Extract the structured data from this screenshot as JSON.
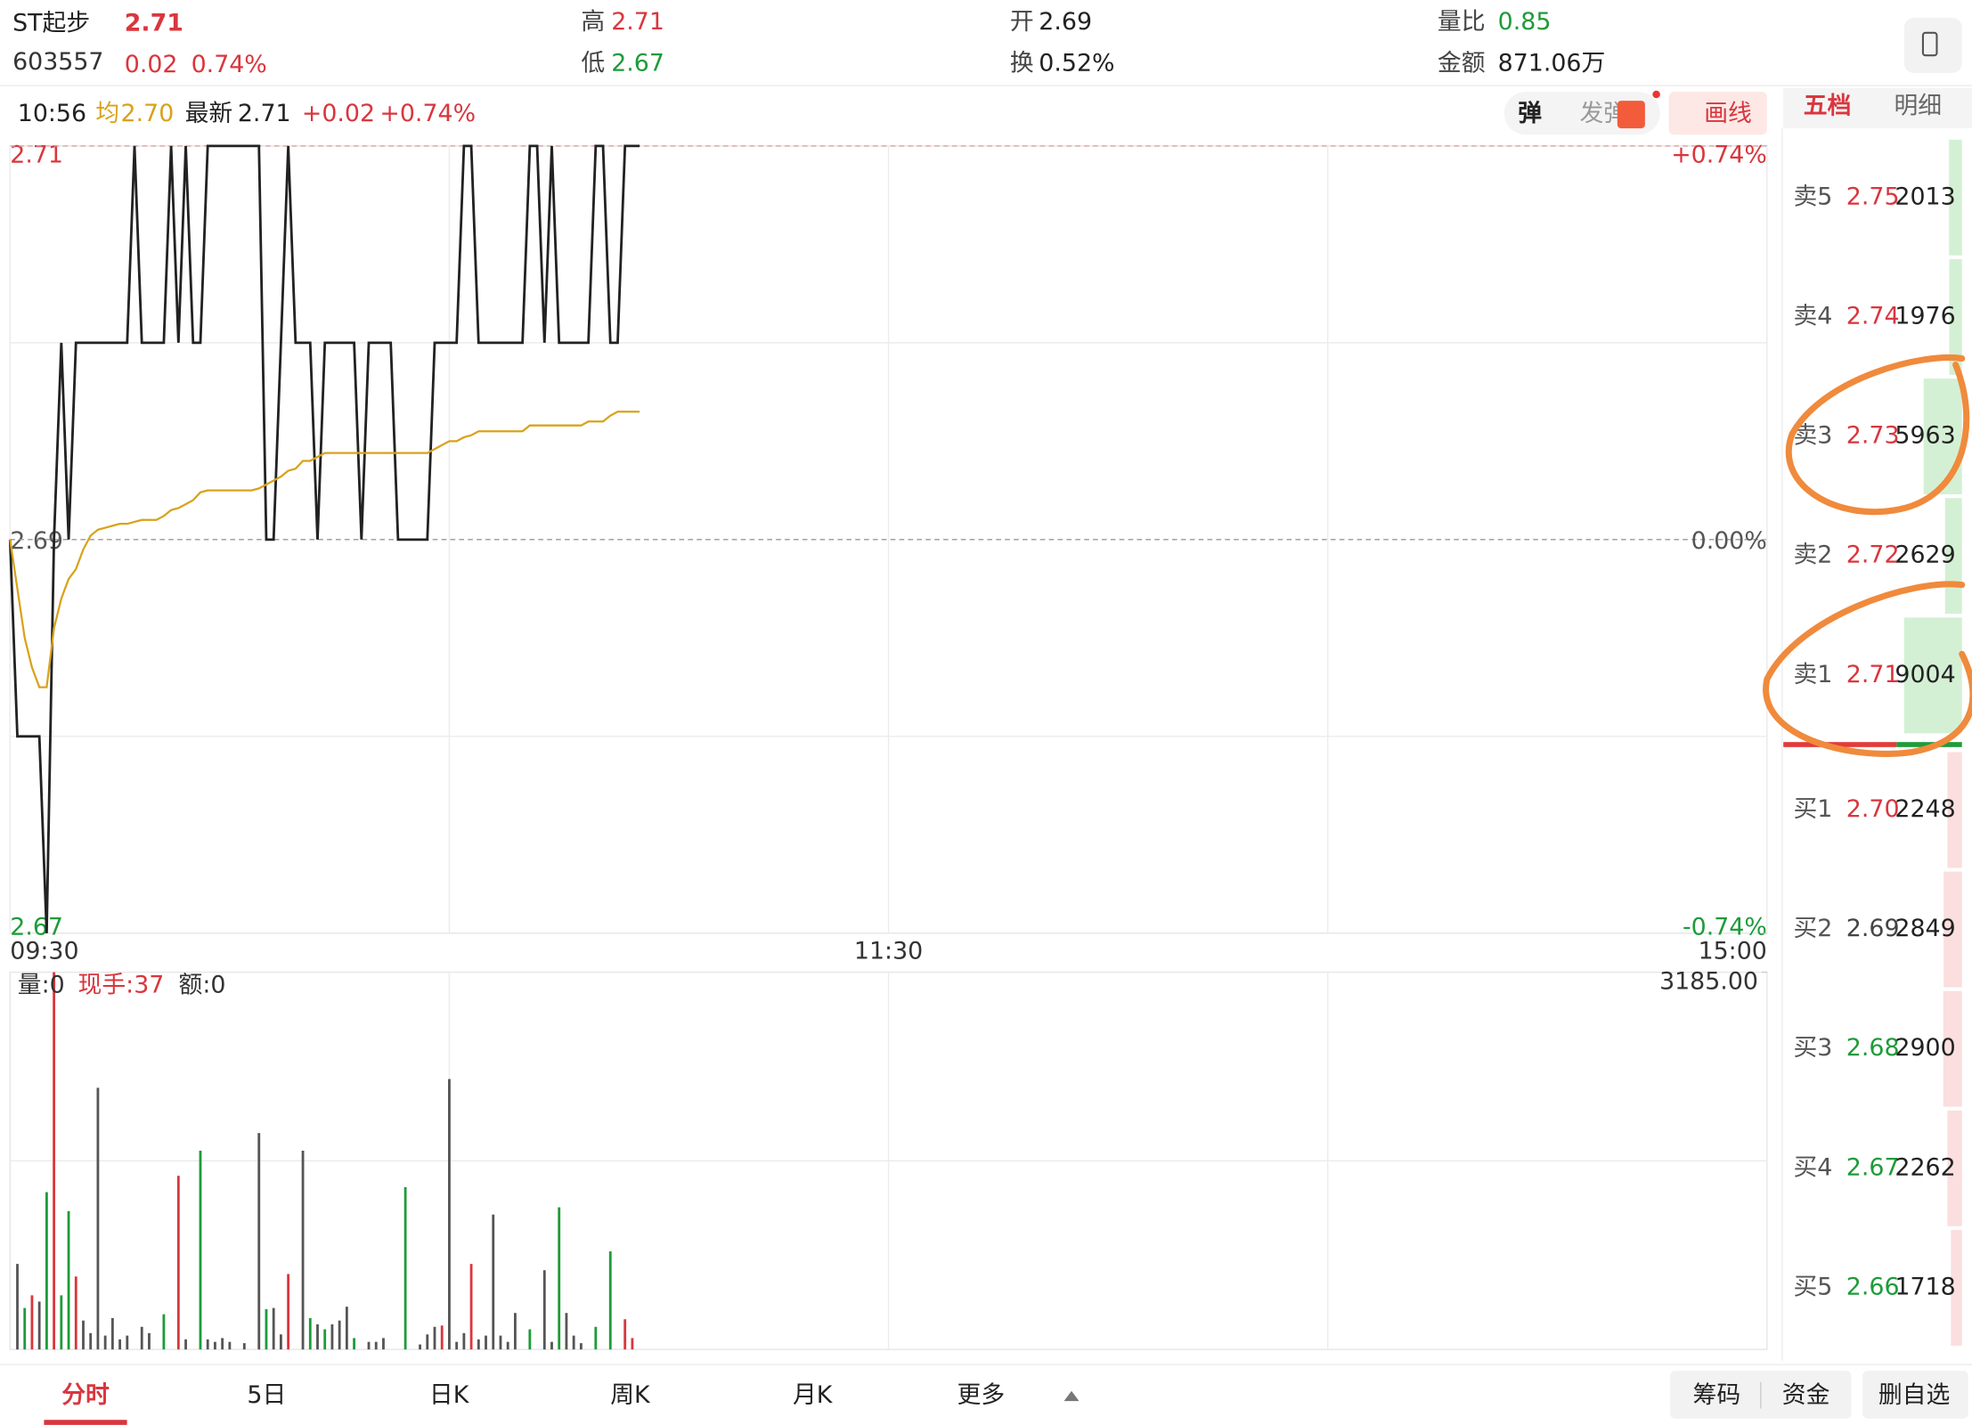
{
  "header": {
    "name": "ST起步",
    "price": "2.71",
    "code": "603557",
    "change": "0.02",
    "change_pct": "0.74%",
    "high_label": "高",
    "high": "2.71",
    "low_label": "低",
    "low": "2.67",
    "open_label": "开",
    "open": "2.69",
    "turnover_label": "换",
    "turnover": "0.52%",
    "volume_ratio_label": "量比",
    "volume_ratio": "0.85",
    "amount_label": "金额",
    "amount": "871.06万"
  },
  "info_bar": {
    "time": "10:56",
    "avg": "2.70",
    "latest": "2.71",
    "change": "+0.02",
    "change_pct": "+0.74%"
  },
  "toolbar": {
    "danmaku": "弹",
    "send_danmaku": "发弹",
    "draw": "画线"
  },
  "chart_data": [
    {
      "type": "line",
      "x": [
        0,
        1,
        2,
        3,
        4,
        5,
        6,
        7,
        8,
        9,
        10,
        11,
        12,
        13,
        14,
        15,
        16,
        17,
        18,
        19,
        20,
        21,
        22,
        23,
        24,
        25,
        26,
        27,
        28,
        29,
        30,
        31,
        32,
        33,
        34,
        35,
        36,
        37,
        38,
        39,
        40,
        41,
        42,
        43,
        44,
        45,
        46,
        47,
        48,
        49,
        50,
        51,
        52,
        53,
        54,
        55,
        56,
        57,
        58,
        59,
        60,
        61,
        62,
        63,
        64,
        65,
        66,
        67,
        68,
        69,
        70,
        71,
        72,
        73,
        74,
        75,
        76,
        77,
        78,
        79,
        80,
        81,
        82,
        83,
        84,
        85,
        86
      ],
      "xlim": [
        0,
        240
      ],
      "xticks": [
        {
          "value": 0,
          "label": "09:30"
        },
        {
          "value": 120,
          "label": "11:30"
        },
        {
          "value": 240,
          "label": "15:00"
        }
      ],
      "xgrid": [
        60,
        180
      ],
      "ylim": [
        2.67,
        2.71
      ],
      "yticks": [
        2.67,
        2.69,
        2.71
      ],
      "ygrid": [
        2.68,
        2.7
      ],
      "y2lim": [
        -0.74,
        0.74
      ],
      "y2ticks": [
        {
          "value": -0.74,
          "label": "-0.74%"
        },
        {
          "value": 0,
          "label": "0.00%"
        },
        {
          "value": 0.74,
          "label": "+0.74%"
        }
      ],
      "series": [
        {
          "name": "最新",
          "color": "#222222",
          "values": [
            2.69,
            2.68,
            2.68,
            2.68,
            2.68,
            2.67,
            2.69,
            2.7,
            2.69,
            2.7,
            2.7,
            2.7,
            2.7,
            2.7,
            2.7,
            2.7,
            2.7,
            2.71,
            2.7,
            2.7,
            2.7,
            2.7,
            2.71,
            2.7,
            2.71,
            2.7,
            2.7,
            2.71,
            2.71,
            2.71,
            2.71,
            2.71,
            2.71,
            2.71,
            2.71,
            2.69,
            2.69,
            2.7,
            2.71,
            2.7,
            2.7,
            2.7,
            2.69,
            2.7,
            2.7,
            2.7,
            2.7,
            2.7,
            2.69,
            2.7,
            2.7,
            2.7,
            2.7,
            2.69,
            2.69,
            2.69,
            2.69,
            2.69,
            2.7,
            2.7,
            2.7,
            2.7,
            2.71,
            2.71,
            2.7,
            2.7,
            2.7,
            2.7,
            2.7,
            2.7,
            2.7,
            2.71,
            2.71,
            2.7,
            2.71,
            2.7,
            2.7,
            2.7,
            2.7,
            2.7,
            2.71,
            2.71,
            2.7,
            2.7,
            2.71,
            2.71,
            2.71
          ]
        },
        {
          "name": "均",
          "color": "#d9a21b",
          "values": [
            2.69,
            2.6875,
            2.685,
            2.6835,
            2.6825,
            2.6825,
            2.6855,
            2.687,
            2.688,
            2.6885,
            2.6895,
            2.6902,
            2.6905,
            2.6906,
            2.6907,
            2.6908,
            2.6908,
            2.6909,
            2.691,
            2.691,
            2.691,
            2.6912,
            2.6915,
            2.6916,
            2.6918,
            2.692,
            2.6924,
            2.6925,
            2.6925,
            2.6925,
            2.6925,
            2.6925,
            2.6925,
            2.6925,
            2.6926,
            2.6928,
            2.693,
            2.6932,
            2.6935,
            2.6936,
            2.694,
            2.694,
            2.6942,
            2.6944,
            2.6944,
            2.6944,
            2.6944,
            2.6944,
            2.6944,
            2.6944,
            2.6944,
            2.6944,
            2.6944,
            2.6944,
            2.6944,
            2.6944,
            2.6944,
            2.6944,
            2.6946,
            2.6948,
            2.695,
            2.695,
            2.6952,
            2.6953,
            2.6955,
            2.6955,
            2.6955,
            2.6955,
            2.6955,
            2.6955,
            2.6955,
            2.6958,
            2.6958,
            2.6958,
            2.6958,
            2.6958,
            2.6958,
            2.6958,
            2.6958,
            2.696,
            2.696,
            2.696,
            2.6963,
            2.6965,
            2.6965,
            2.6965,
            2.6965
          ]
        }
      ]
    },
    {
      "type": "bar",
      "x": [
        0,
        1,
        2,
        3,
        4,
        5,
        6,
        7,
        8,
        9,
        10,
        11,
        12,
        13,
        14,
        15,
        16,
        17,
        18,
        19,
        20,
        21,
        22,
        23,
        24,
        25,
        26,
        27,
        28,
        29,
        30,
        31,
        32,
        33,
        34,
        35,
        36,
        37,
        38,
        39,
        40,
        41,
        42,
        43,
        44,
        45,
        46,
        47,
        48,
        49,
        50,
        51,
        52,
        53,
        54,
        55,
        56,
        57,
        58,
        59,
        60,
        61,
        62,
        63,
        64,
        65,
        66,
        67,
        68,
        69,
        70,
        71,
        72,
        73,
        74,
        75,
        76,
        77,
        78,
        79,
        80,
        81,
        82,
        83,
        84,
        85,
        86
      ],
      "xlim": [
        0,
        240
      ],
      "xgrid": [
        60,
        120,
        180
      ],
      "ylim": [
        0,
        3185
      ],
      "yticks": [
        {
          "value": 3185,
          "label": "3185.00"
        }
      ],
      "ygrid": [
        1592.5
      ],
      "labels": [
        "量:0",
        "现手:37",
        "额:0"
      ],
      "values": [
        0,
        722,
        350,
        457,
        404,
        1328,
        3185,
        457,
        1168,
        616,
        244,
        138,
        2209,
        117,
        265,
        85,
        117,
        0,
        191,
        138,
        0,
        297,
        0,
        1466,
        85,
        0,
        1678,
        85,
        64,
        96,
        64,
        0,
        53,
        0,
        1827,
        340,
        350,
        127,
        637,
        0,
        1678,
        265,
        212,
        170,
        212,
        244,
        361,
        96,
        0,
        64,
        64,
        96,
        0,
        0,
        1370,
        0,
        42,
        127,
        191,
        202,
        2283,
        64,
        138,
        722,
        85,
        117,
        1139,
        117,
        64,
        308,
        0,
        170,
        0,
        669,
        64,
        1200,
        308,
        117,
        53,
        0,
        191,
        0,
        828,
        0,
        255,
        96,
        0
      ],
      "colors": [
        "#555",
        "#555",
        "#1e9b3a",
        "#d9363e",
        "#555",
        "#1e9b3a",
        "#d9363e",
        "#1e9b3a",
        "#1e9b3a",
        "#d9363e",
        "#555",
        "#555",
        "#555",
        "#555",
        "#555",
        "#555",
        "#555",
        "#555",
        "#555",
        "#555",
        "#555",
        "#1e9b3a",
        "#555",
        "#d9363e",
        "#555",
        "#555",
        "#1e9b3a",
        "#555",
        "#555",
        "#555",
        "#555",
        "#555",
        "#555",
        "#555",
        "#555",
        "#1e9b3a",
        "#555",
        "#555",
        "#d9363e",
        "#555",
        "#555",
        "#1e9b3a",
        "#555",
        "#1e9b3a",
        "#555",
        "#555",
        "#555",
        "#1e9b3a",
        "#555",
        "#555",
        "#555",
        "#555",
        "#555",
        "#555",
        "#1e9b3a",
        "#555",
        "#555",
        "#555",
        "#555",
        "#d9363e",
        "#555",
        "#555",
        "#555",
        "#d9363e",
        "#555",
        "#555",
        "#555",
        "#555",
        "#555",
        "#555",
        "#555",
        "#1e9b3a",
        "#555",
        "#555",
        "#555",
        "#1e9b3a",
        "#555",
        "#555",
        "#555",
        "#555",
        "#1e9b3a",
        "#555",
        "#1e9b3a",
        "#555",
        "#d9363e",
        "#d9363e",
        "#555"
      ]
    }
  ],
  "order_book": {
    "tabs": [
      "五档",
      "明细"
    ],
    "levels": [
      {
        "label": "卖5",
        "price": "2.75",
        "volume": 2013,
        "side": "sell",
        "color": "#d9363e"
      },
      {
        "label": "卖4",
        "price": "2.74",
        "volume": 1976,
        "side": "sell",
        "color": "#d9363e"
      },
      {
        "label": "卖3",
        "price": "2.73",
        "volume": 5963,
        "side": "sell",
        "color": "#d9363e"
      },
      {
        "label": "卖2",
        "price": "2.72",
        "volume": 2629,
        "side": "sell",
        "color": "#d9363e"
      },
      {
        "label": "卖1",
        "price": "2.71",
        "volume": 9004,
        "side": "sell",
        "color": "#d9363e"
      },
      {
        "label": "买1",
        "price": "2.70",
        "volume": 2248,
        "side": "buy",
        "color": "#d9363e"
      },
      {
        "label": "买2",
        "price": "2.69",
        "volume": 2849,
        "side": "buy",
        "color": "#444444"
      },
      {
        "label": "买3",
        "price": "2.68",
        "volume": 2900,
        "side": "buy",
        "color": "#1e9b3a"
      },
      {
        "label": "买4",
        "price": "2.67",
        "volume": 2262,
        "side": "buy",
        "color": "#1e9b3a"
      },
      {
        "label": "买5",
        "price": "2.66",
        "volume": 1718,
        "side": "buy",
        "color": "#1e9b3a"
      }
    ]
  },
  "bottom_tabs": [
    "分时",
    "5日",
    "日K",
    "周K",
    "月K",
    "更多"
  ],
  "bottom_buttons": [
    "筹码",
    "资金",
    "删自选"
  ]
}
